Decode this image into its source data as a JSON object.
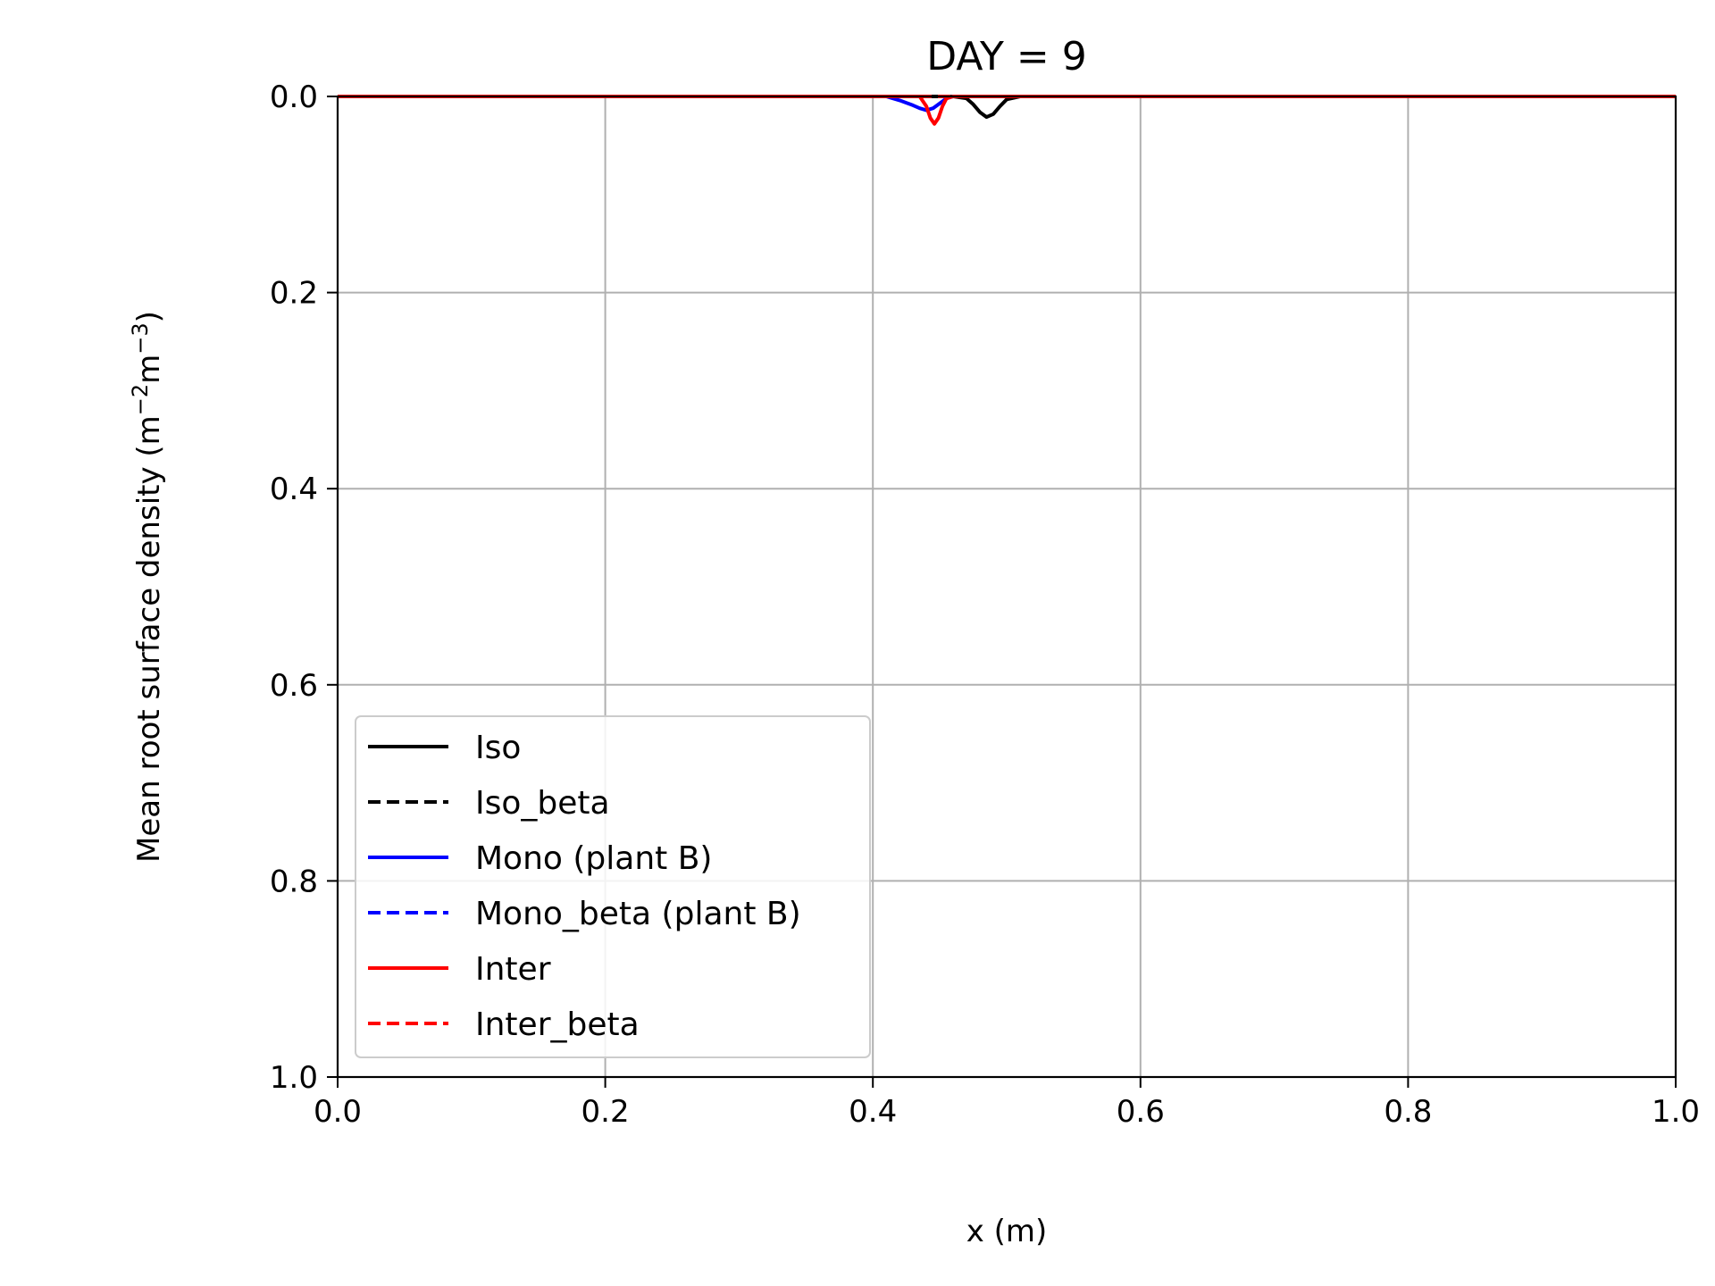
{
  "chart_data": {
    "type": "line",
    "title": "DAY = 9",
    "xlabel": "x (m)",
    "ylabel_main": "Mean root surface density (m",
    "ylabel_sup1": "−2",
    "ylabel_mid": "m",
    "ylabel_sup2": "−3",
    "ylabel_end": ")",
    "xlim": [
      0.0,
      1.0
    ],
    "ylim": [
      0.0,
      1.0
    ],
    "y_inverted": true,
    "grid": true,
    "legend_position": "lower-left",
    "x_ticks": [
      "0.0",
      "0.2",
      "0.4",
      "0.6",
      "0.8",
      "1.0"
    ],
    "y_ticks": [
      "0.0",
      "0.2",
      "0.4",
      "0.6",
      "0.8",
      "1.0"
    ],
    "series": [
      {
        "name": "Iso",
        "color": "#000000",
        "style": "solid",
        "x": [
          0.0,
          0.46,
          0.47,
          0.475,
          0.48,
          0.485,
          0.49,
          0.495,
          0.5,
          0.51,
          1.0
        ],
        "y": [
          0.0,
          0.0,
          0.002,
          0.008,
          0.016,
          0.021,
          0.018,
          0.01,
          0.003,
          0.0,
          0.0
        ]
      },
      {
        "name": "Iso_beta",
        "color": "#000000",
        "style": "dashed",
        "x": [
          0.0,
          1.0
        ],
        "y": [
          0.0,
          0.0
        ]
      },
      {
        "name": "Mono (plant B)",
        "color": "#0000ff",
        "style": "solid",
        "x": [
          0.0,
          0.41,
          0.42,
          0.43,
          0.435,
          0.44,
          0.445,
          0.45,
          0.455,
          0.46,
          1.0
        ],
        "y": [
          0.0,
          0.0,
          0.004,
          0.009,
          0.012,
          0.014,
          0.012,
          0.007,
          0.002,
          0.0,
          0.0
        ]
      },
      {
        "name": "Mono_beta (plant B)",
        "color": "#0000ff",
        "style": "dashed",
        "x": [
          0.0,
          1.0
        ],
        "y": [
          0.0,
          0.0
        ]
      },
      {
        "name": "Inter",
        "color": "#ff0000",
        "style": "solid",
        "x": [
          0.0,
          0.435,
          0.44,
          0.443,
          0.446,
          0.449,
          0.452,
          0.455,
          0.46,
          1.0
        ],
        "y": [
          0.0,
          0.0,
          0.01,
          0.022,
          0.028,
          0.022,
          0.01,
          0.002,
          0.0,
          0.0
        ]
      },
      {
        "name": "Inter_beta",
        "color": "#ff0000",
        "style": "dashed",
        "x": [
          0.0,
          0.9
        ],
        "y": [
          0.0,
          0.0
        ]
      }
    ]
  }
}
